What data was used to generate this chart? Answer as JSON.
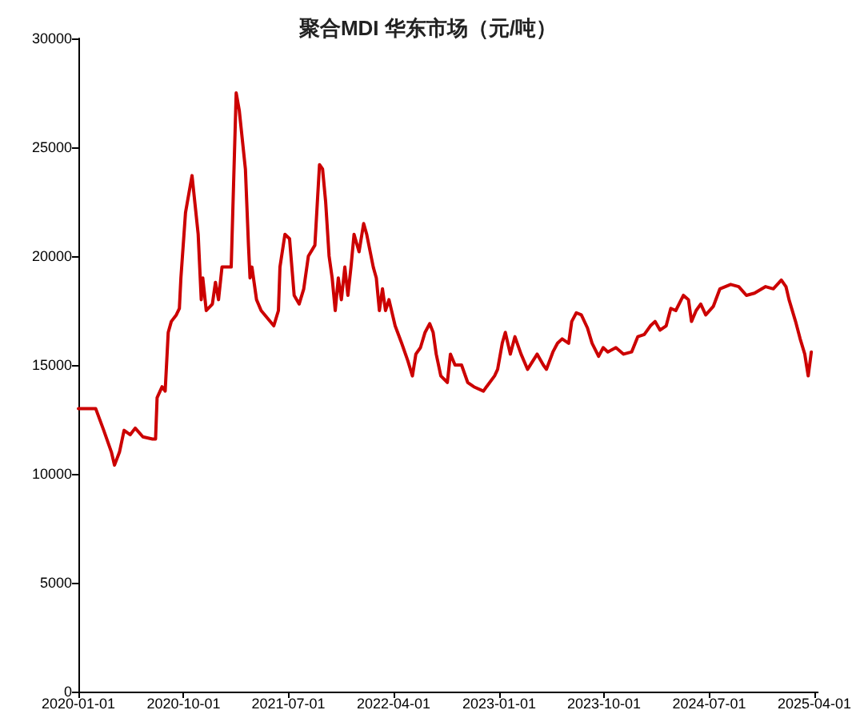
{
  "chart_data": {
    "type": "line",
    "title": "聚合MDI 华东市场（元/吨）",
    "x": [
      "2020-01-01",
      "2020-02-15",
      "2020-03-07",
      "2020-03-27",
      "2020-04-04",
      "2020-04-17",
      "2020-04-29",
      "2020-05-15",
      "2020-05-28",
      "2020-06-17",
      "2020-07-12",
      "2020-07-20",
      "2020-07-24",
      "2020-08-06",
      "2020-08-14",
      "2020-08-22",
      "2020-08-30",
      "2020-09-12",
      "2020-09-20",
      "2020-09-24",
      "2020-10-02",
      "2020-10-06",
      "2020-10-23",
      "2020-11-08",
      "2020-11-16",
      "2020-11-20",
      "2020-11-29",
      "2020-12-15",
      "2020-12-23",
      "2020-12-31",
      "2021-01-09",
      "2021-02-02",
      "2021-02-15",
      "2021-02-23",
      "2021-03-11",
      "2021-03-19",
      "2021-03-23",
      "2021-03-28",
      "2021-04-09",
      "2021-04-21",
      "2021-05-24",
      "2021-06-05",
      "2021-06-09",
      "2021-06-22",
      "2021-07-04",
      "2021-07-16",
      "2021-07-29",
      "2021-08-10",
      "2021-08-22",
      "2021-09-08",
      "2021-09-20",
      "2021-09-28",
      "2021-10-06",
      "2021-10-15",
      "2021-10-23",
      "2021-10-31",
      "2021-11-08",
      "2021-11-16",
      "2021-11-25",
      "2021-12-03",
      "2021-12-11",
      "2021-12-19",
      "2022-01-01",
      "2022-01-13",
      "2022-01-21",
      "2022-02-07",
      "2022-02-15",
      "2022-02-23",
      "2022-03-03",
      "2022-03-11",
      "2022-03-20",
      "2022-04-05",
      "2022-04-22",
      "2022-05-08",
      "2022-05-20",
      "2022-05-29",
      "2022-06-10",
      "2022-06-22",
      "2022-07-04",
      "2022-07-13",
      "2022-07-21",
      "2022-08-02",
      "2022-08-19",
      "2022-08-27",
      "2022-09-08",
      "2022-09-25",
      "2022-10-11",
      "2022-10-27",
      "2022-11-21",
      "2022-11-29",
      "2022-12-20",
      "2022-12-28",
      "2023-01-09",
      "2023-01-17",
      "2023-01-30",
      "2023-02-11",
      "2023-02-27",
      "2023-03-16",
      "2023-04-10",
      "2023-04-26",
      "2023-05-04",
      "2023-05-21",
      "2023-06-02",
      "2023-06-14",
      "2023-07-01",
      "2023-07-09",
      "2023-07-21",
      "2023-08-03",
      "2023-08-19",
      "2023-08-31",
      "2023-09-17",
      "2023-09-29",
      "2023-10-11",
      "2023-11-01",
      "2023-11-21",
      "2023-12-12",
      "2023-12-28",
      "2024-01-14",
      "2024-01-30",
      "2024-02-11",
      "2024-02-24",
      "2024-03-11",
      "2024-03-23",
      "2024-04-05",
      "2024-04-25",
      "2024-05-08",
      "2024-05-16",
      "2024-05-28",
      "2024-06-09",
      "2024-06-22",
      "2024-07-12",
      "2024-07-29",
      "2024-08-26",
      "2024-09-16",
      "2024-10-06",
      "2024-10-27",
      "2024-11-25",
      "2024-12-15",
      "2025-01-05",
      "2025-01-17",
      "2025-01-25",
      "2025-02-11",
      "2025-02-23",
      "2025-03-07",
      "2025-03-16",
      "2025-03-24"
    ],
    "series": [
      {
        "color": "#cc0000",
        "values": [
          13000,
          13000,
          12000,
          11000,
          10400,
          11000,
          12000,
          11800,
          12100,
          11700,
          11600,
          11600,
          13500,
          14000,
          13800,
          16500,
          17000,
          17300,
          17600,
          19000,
          21000,
          22000,
          23700,
          21000,
          18000,
          19000,
          17500,
          17800,
          18800,
          18000,
          19500,
          19500,
          27500,
          26700,
          24000,
          20500,
          19000,
          19500,
          18000,
          17500,
          16800,
          17500,
          19500,
          21000,
          20800,
          18200,
          17800,
          18500,
          20000,
          20500,
          24200,
          24000,
          22500,
          20000,
          19000,
          17500,
          19000,
          18000,
          19500,
          18200,
          19500,
          21000,
          20200,
          21500,
          21000,
          19500,
          19000,
          17500,
          18500,
          17500,
          18000,
          16800,
          16000,
          15200,
          14500,
          15500,
          15800,
          16500,
          16900,
          16500,
          15500,
          14500,
          14200,
          15500,
          15000,
          15000,
          14200,
          14000,
          13800,
          14000,
          14500,
          14800,
          16000,
          16500,
          15500,
          16300,
          15500,
          14800,
          15500,
          15000,
          14800,
          15600,
          16000,
          16200,
          16000,
          17000,
          17400,
          17300,
          16700,
          16000,
          15400,
          15800,
          15600,
          15800,
          15500,
          15600,
          16300,
          16400,
          16800,
          17000,
          16600,
          16800,
          17600,
          17500,
          18200,
          18000,
          17000,
          17500,
          17800,
          17300,
          17700,
          18500,
          18700,
          18600,
          18200,
          18300,
          18600,
          18500,
          18900,
          18600,
          18000,
          17000,
          16200,
          15500,
          14500,
          15600
        ]
      }
    ],
    "xlim": [
      "2020-01-01",
      "2025-04-10"
    ],
    "xticks": [
      "2020-01-01",
      "2020-10-01",
      "2021-07-01",
      "2022-04-01",
      "2023-01-01",
      "2023-10-01",
      "2024-07-01",
      "2025-04-01"
    ],
    "ylim": [
      0,
      30000
    ],
    "yticks": [
      0,
      5000,
      10000,
      15000,
      20000,
      25000,
      30000
    ],
    "grid": false,
    "marker": "none",
    "line_style": "solid"
  }
}
